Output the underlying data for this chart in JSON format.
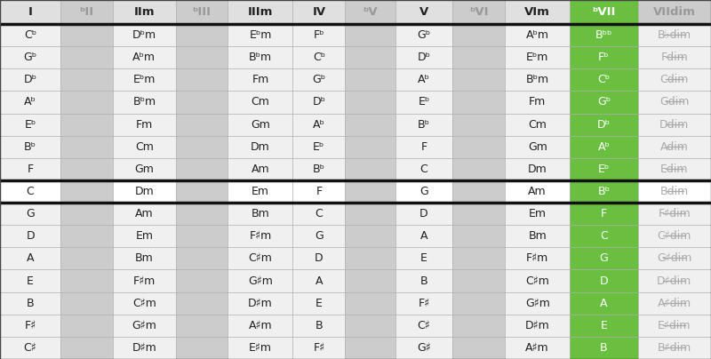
{
  "headers": [
    "I",
    "ᵇII",
    "IIm",
    "ᵇIII",
    "IIIm",
    "IV",
    "ᵇV",
    "V",
    "ᵇVI",
    "VIm",
    "ᵇVII",
    "VIIdim"
  ],
  "header_gray": [
    false,
    true,
    false,
    true,
    false,
    false,
    true,
    false,
    true,
    false,
    false,
    true
  ],
  "header_green": [
    false,
    false,
    false,
    false,
    false,
    false,
    false,
    false,
    false,
    false,
    true,
    false
  ],
  "rows": [
    [
      "Cᵇ",
      "",
      "Dᵇm",
      "",
      "Eᵇm",
      "Fᵇ",
      "",
      "Gᵇ",
      "",
      "Aᵇm",
      "Bᵇᵇ",
      "B♭dim"
    ],
    [
      "Gᵇ",
      "",
      "Aᵇm",
      "",
      "Bᵇm",
      "Cᵇ",
      "",
      "Dᵇ",
      "",
      "Eᵇm",
      "Fᵇ",
      "Fdim"
    ],
    [
      "Dᵇ",
      "",
      "Eᵇm",
      "",
      "Fm",
      "Gᵇ",
      "",
      "Aᵇ",
      "",
      "Bᵇm",
      "Cᵇ",
      "Cdim"
    ],
    [
      "Aᵇ",
      "",
      "Bᵇm",
      "",
      "Cm",
      "Dᵇ",
      "",
      "Eᵇ",
      "",
      "Fm",
      "Gᵇ",
      "Gdim"
    ],
    [
      "Eᵇ",
      "",
      "Fm",
      "",
      "Gm",
      "Aᵇ",
      "",
      "Bᵇ",
      "",
      "Cm",
      "Dᵇ",
      "Ddim"
    ],
    [
      "Bᵇ",
      "",
      "Cm",
      "",
      "Dm",
      "Eᵇ",
      "",
      "F",
      "",
      "Gm",
      "Aᵇ",
      "Adim"
    ],
    [
      "F",
      "",
      "Gm",
      "",
      "Am",
      "Bᵇ",
      "",
      "C",
      "",
      "Dm",
      "Eᵇ",
      "Edim"
    ],
    [
      "C",
      "",
      "Dm",
      "",
      "Em",
      "F",
      "",
      "G",
      "",
      "Am",
      "Bᵇ",
      "Bdim"
    ],
    [
      "G",
      "",
      "Am",
      "",
      "Bm",
      "C",
      "",
      "D",
      "",
      "Em",
      "F",
      "F♯dim"
    ],
    [
      "D",
      "",
      "Em",
      "",
      "F♯m",
      "G",
      "",
      "A",
      "",
      "Bm",
      "C",
      "C♯dim"
    ],
    [
      "A",
      "",
      "Bm",
      "",
      "C♯m",
      "D",
      "",
      "E",
      "",
      "F♯m",
      "G",
      "G♯dim"
    ],
    [
      "E",
      "",
      "F♯m",
      "",
      "G♯m",
      "A",
      "",
      "B",
      "",
      "C♯m",
      "D",
      "D♯dim"
    ],
    [
      "B",
      "",
      "C♯m",
      "",
      "D♯m",
      "E",
      "",
      "F♯",
      "",
      "G♯m",
      "A",
      "A♯dim"
    ],
    [
      "F♯",
      "",
      "G♯m",
      "",
      "A♯m",
      "B",
      "",
      "C♯",
      "",
      "D♯m",
      "E",
      "E♯dim"
    ],
    [
      "C♯",
      "",
      "D♯m",
      "",
      "E♯m",
      "F♯",
      "",
      "G♯",
      "",
      "A♯m",
      "B",
      "B♯dim"
    ]
  ],
  "separator_row": 7,
  "col_gray": [
    1,
    3,
    6,
    8
  ],
  "col_green": [
    10
  ],
  "col_strikethrough": [
    11
  ],
  "bg_white": "#ffffff",
  "bg_light_gray": "#cccccc",
  "bg_row_light": "#e8e8e8",
  "bg_green": "#6abf40",
  "text_dark": "#222222",
  "text_gray": "#999999",
  "text_strike_gray": "#aaaaaa",
  "col_widths_raw": [
    58,
    50,
    60,
    50,
    62,
    50,
    48,
    55,
    50,
    62,
    65,
    70
  ]
}
